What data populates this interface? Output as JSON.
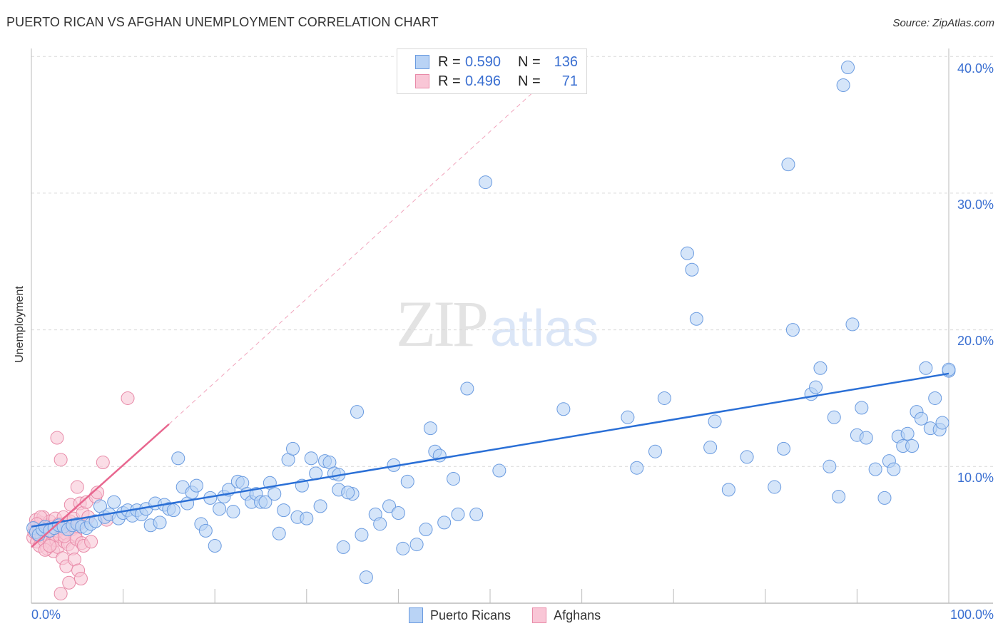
{
  "header": {
    "title": "PUERTO RICAN VS AFGHAN UNEMPLOYMENT CORRELATION CHART",
    "source": "Source: ZipAtlas.com"
  },
  "watermark": {
    "zip": "ZIP",
    "atlas": "atlas"
  },
  "legend": {
    "rows": [
      {
        "series": "Puerto Ricans",
        "r_label": "R =",
        "r_value": "0.590",
        "n_label": "N =",
        "n_value": "136",
        "fill": "#b9d3f5",
        "stroke": "#6a9be0"
      },
      {
        "series": "Afghans",
        "r_label": "R =",
        "r_value": "0.496",
        "n_label": "N =",
        "n_value": "71",
        "fill": "#f9c6d6",
        "stroke": "#e88aa8"
      }
    ],
    "bottom": [
      {
        "label": "Puerto Ricans",
        "fill": "#b9d3f5",
        "stroke": "#6a9be0"
      },
      {
        "label": "Afghans",
        "fill": "#f9c6d6",
        "stroke": "#e88aa8"
      }
    ]
  },
  "axes": {
    "y_label": "Unemployment",
    "y_ticks": [
      "40.0%",
      "30.0%",
      "20.0%",
      "10.0%"
    ],
    "x_ticks": [
      "0.0%",
      "100.0%"
    ]
  },
  "colors": {
    "blue_fill": "#b9d3f5",
    "blue_stroke": "#6a9be0",
    "blue_line": "#2a6fd6",
    "pink_fill": "#f9c6d6",
    "pink_stroke": "#e88aa8",
    "pink_line": "#e8678f",
    "grid": "#d9d9d9",
    "axis": "#bbbbbb",
    "tick_text": "#3a6fd1"
  },
  "chart_data": {
    "type": "scatter",
    "title": "PUERTO RICAN VS AFGHAN UNEMPLOYMENT CORRELATION CHART",
    "xlabel": "",
    "ylabel": "Unemployment",
    "xlim": [
      0,
      100
    ],
    "ylim": [
      0,
      42
    ],
    "x_unit": "%",
    "y_unit": "%",
    "grid": {
      "horizontal": [
        10,
        20,
        30,
        40
      ],
      "style": "dashed"
    },
    "legend_position": "bottom-center",
    "series": [
      {
        "name": "Puerto Ricans",
        "color": "#6a9be0",
        "r": 0.59,
        "n": 136,
        "trend": {
          "x": [
            0,
            100
          ],
          "y": [
            5.6,
            16.8
          ],
          "style": "solid"
        },
        "points": [
          [
            0.2,
            5.5
          ],
          [
            0.5,
            5.2
          ],
          [
            0.8,
            5.0
          ],
          [
            1.2,
            5.4
          ],
          [
            1.5,
            5.6
          ],
          [
            2.0,
            5.3
          ],
          [
            2.5,
            5.5
          ],
          [
            3.0,
            5.7
          ],
          [
            3.5,
            5.6
          ],
          [
            4.0,
            5.4
          ],
          [
            4.5,
            5.7
          ],
          [
            5.0,
            5.8
          ],
          [
            5.5,
            5.6
          ],
          [
            6.0,
            5.5
          ],
          [
            6.5,
            5.8
          ],
          [
            7.0,
            6.0
          ],
          [
            7.5,
            7.1
          ],
          [
            8.0,
            6.3
          ],
          [
            8.5,
            6.5
          ],
          [
            9.0,
            7.4
          ],
          [
            9.5,
            6.2
          ],
          [
            10.0,
            6.6
          ],
          [
            10.5,
            6.8
          ],
          [
            11.0,
            6.4
          ],
          [
            11.5,
            6.8
          ],
          [
            12.0,
            6.5
          ],
          [
            12.5,
            6.9
          ],
          [
            13.0,
            5.7
          ],
          [
            13.5,
            7.3
          ],
          [
            14.0,
            5.9
          ],
          [
            14.5,
            7.2
          ],
          [
            15.0,
            6.9
          ],
          [
            15.5,
            6.8
          ],
          [
            16.0,
            10.6
          ],
          [
            16.5,
            8.5
          ],
          [
            17.0,
            7.3
          ],
          [
            17.5,
            8.1
          ],
          [
            18.0,
            8.6
          ],
          [
            18.5,
            5.8
          ],
          [
            19.0,
            5.3
          ],
          [
            19.5,
            7.7
          ],
          [
            20.0,
            4.2
          ],
          [
            20.5,
            6.9
          ],
          [
            21.0,
            7.8
          ],
          [
            21.5,
            8.3
          ],
          [
            22.0,
            6.7
          ],
          [
            22.5,
            8.9
          ],
          [
            23.0,
            8.8
          ],
          [
            23.5,
            8.0
          ],
          [
            24.0,
            7.4
          ],
          [
            24.5,
            8.0
          ],
          [
            25.0,
            7.4
          ],
          [
            25.5,
            7.4
          ],
          [
            26.0,
            8.8
          ],
          [
            26.5,
            8.0
          ],
          [
            27.0,
            5.1
          ],
          [
            27.5,
            6.8
          ],
          [
            28.0,
            10.5
          ],
          [
            28.5,
            11.3
          ],
          [
            29.0,
            6.3
          ],
          [
            29.5,
            8.6
          ],
          [
            30.0,
            6.2
          ],
          [
            30.5,
            10.6
          ],
          [
            31.0,
            9.5
          ],
          [
            31.5,
            7.1
          ],
          [
            32.0,
            10.4
          ],
          [
            32.5,
            10.3
          ],
          [
            33.0,
            9.5
          ],
          [
            33.5,
            8.3
          ],
          [
            34.0,
            4.1
          ],
          [
            35.0,
            8.0
          ],
          [
            35.5,
            14.0
          ],
          [
            36.0,
            5.0
          ],
          [
            36.5,
            1.9
          ],
          [
            37.5,
            6.5
          ],
          [
            38.0,
            5.8
          ],
          [
            39.0,
            7.1
          ],
          [
            39.5,
            10.1
          ],
          [
            40.0,
            6.6
          ],
          [
            40.5,
            4.0
          ],
          [
            41.0,
            8.9
          ],
          [
            42.0,
            4.3
          ],
          [
            43.0,
            5.4
          ],
          [
            43.5,
            12.8
          ],
          [
            44.0,
            11.1
          ],
          [
            44.5,
            10.8
          ],
          [
            45.0,
            5.9
          ],
          [
            46.0,
            9.1
          ],
          [
            46.5,
            6.5
          ],
          [
            47.5,
            15.7
          ],
          [
            49.5,
            30.8
          ],
          [
            51.0,
            9.7
          ],
          [
            58.0,
            14.2
          ],
          [
            65.0,
            13.6
          ],
          [
            66.0,
            9.9
          ],
          [
            68.0,
            11.1
          ],
          [
            69.0,
            15.0
          ],
          [
            71.5,
            25.6
          ],
          [
            72.0,
            24.4
          ],
          [
            72.5,
            20.8
          ],
          [
            74.0,
            11.4
          ],
          [
            74.5,
            13.3
          ],
          [
            76.0,
            8.3
          ],
          [
            78.0,
            10.7
          ],
          [
            81.0,
            8.5
          ],
          [
            82.0,
            11.3
          ],
          [
            82.5,
            32.1
          ],
          [
            83.0,
            20.0
          ],
          [
            85.0,
            15.3
          ],
          [
            85.5,
            15.8
          ],
          [
            86.0,
            17.2
          ],
          [
            87.0,
            10.0
          ],
          [
            87.5,
            13.6
          ],
          [
            88.0,
            7.8
          ],
          [
            88.5,
            37.9
          ],
          [
            89.0,
            39.2
          ],
          [
            89.5,
            20.4
          ],
          [
            90.0,
            12.3
          ],
          [
            90.5,
            14.3
          ],
          [
            91.0,
            12.1
          ],
          [
            92.0,
            9.8
          ],
          [
            93.0,
            7.7
          ],
          [
            93.5,
            10.4
          ],
          [
            94.0,
            9.8
          ],
          [
            94.5,
            12.2
          ],
          [
            95.0,
            11.5
          ],
          [
            95.5,
            12.4
          ],
          [
            96.0,
            11.5
          ],
          [
            96.5,
            14.0
          ],
          [
            97.0,
            13.5
          ],
          [
            97.5,
            17.2
          ],
          [
            98.0,
            12.8
          ],
          [
            98.5,
            15.0
          ],
          [
            99.0,
            12.7
          ],
          [
            99.3,
            13.2
          ],
          [
            100.0,
            17.0
          ],
          [
            48.5,
            6.5
          ],
          [
            33.5,
            9.4
          ],
          [
            34.5,
            8.1
          ],
          [
            100.0,
            17.1
          ]
        ]
      },
      {
        "name": "Afghans",
        "color": "#e88aa8",
        "r": 0.496,
        "n": 71,
        "trend": {
          "x": [
            0,
            15,
            55.7
          ],
          "y": [
            4.1,
            13.1,
            38.0
          ],
          "style": "solid-then-dashed",
          "solid_until_x": 15
        },
        "points": [
          [
            0.2,
            4.8
          ],
          [
            0.3,
            5.2
          ],
          [
            0.4,
            5.6
          ],
          [
            0.5,
            6.1
          ],
          [
            0.6,
            4.5
          ],
          [
            0.7,
            5.0
          ],
          [
            0.8,
            5.4
          ],
          [
            0.9,
            4.2
          ],
          [
            1.0,
            5.9
          ],
          [
            1.1,
            4.9
          ],
          [
            1.2,
            5.3
          ],
          [
            1.3,
            6.3
          ],
          [
            1.4,
            4.6
          ],
          [
            1.5,
            5.1
          ],
          [
            1.6,
            5.7
          ],
          [
            1.7,
            4.0
          ],
          [
            1.8,
            5.5
          ],
          [
            1.9,
            4.8
          ],
          [
            2.0,
            6.0
          ],
          [
            2.1,
            5.2
          ],
          [
            2.2,
            4.4
          ],
          [
            2.3,
            5.6
          ],
          [
            2.4,
            3.8
          ],
          [
            2.5,
            5.0
          ],
          [
            2.6,
            6.2
          ],
          [
            2.7,
            4.6
          ],
          [
            2.8,
            5.3
          ],
          [
            2.9,
            4.1
          ],
          [
            3.0,
            5.8
          ],
          [
            3.1,
            4.9
          ],
          [
            3.2,
            0.7
          ],
          [
            3.3,
            5.5
          ],
          [
            3.4,
            3.3
          ],
          [
            3.5,
            6.3
          ],
          [
            3.6,
            4.5
          ],
          [
            3.7,
            5.1
          ],
          [
            3.8,
            2.7
          ],
          [
            3.9,
            5.9
          ],
          [
            4.0,
            4.3
          ],
          [
            4.1,
            1.5
          ],
          [
            4.2,
            6.0
          ],
          [
            4.3,
            7.2
          ],
          [
            4.4,
            5.4
          ],
          [
            4.5,
            4.0
          ],
          [
            4.6,
            6.2
          ],
          [
            4.7,
            3.2
          ],
          [
            4.8,
            5.0
          ],
          [
            4.9,
            4.7
          ],
          [
            5.0,
            8.5
          ],
          [
            5.1,
            2.4
          ],
          [
            5.2,
            5.8
          ],
          [
            5.3,
            7.3
          ],
          [
            5.4,
            1.8
          ],
          [
            5.5,
            4.4
          ],
          [
            5.6,
            6.6
          ],
          [
            5.7,
            4.2
          ],
          [
            6.0,
            7.4
          ],
          [
            6.2,
            6.3
          ],
          [
            6.5,
            4.5
          ],
          [
            7.0,
            7.8
          ],
          [
            7.2,
            8.1
          ],
          [
            7.8,
            10.3
          ],
          [
            8.2,
            6.1
          ],
          [
            2.8,
            12.1
          ],
          [
            3.2,
            10.5
          ],
          [
            10.5,
            15.0
          ],
          [
            1.0,
            6.3
          ],
          [
            1.5,
            3.9
          ],
          [
            2.0,
            4.2
          ],
          [
            0.6,
            5.8
          ],
          [
            3.6,
            4.9
          ]
        ]
      }
    ]
  }
}
